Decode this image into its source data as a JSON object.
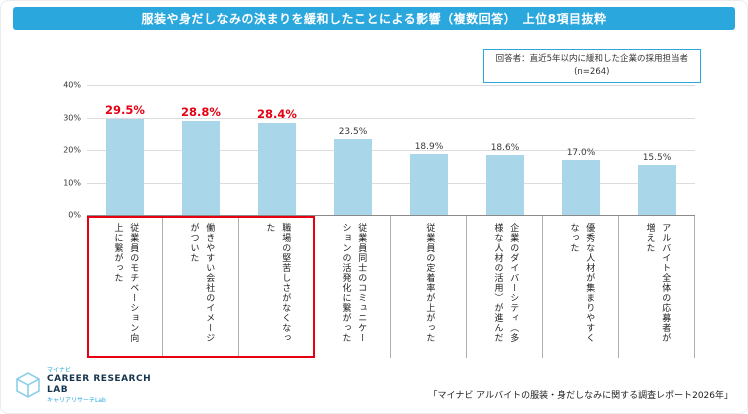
{
  "header": {
    "title": "服装や身だしなみの決まりを緩和したことによる影響（複数回答）　上位8項目抜粋"
  },
  "note": {
    "line1": "回答者：直近5年以内に緩和した企業の採用担当者",
    "line2": "(n=264)"
  },
  "chart_data": {
    "type": "bar",
    "title": "服装や身だしなみの決まりを緩和したことによる影響（複数回答）　上位8項目抜粋",
    "categories": [
      "従業員のモチベーション向上に繋がった",
      "働きやすい会社のイメージがついた",
      "職場の堅苦しさがなくなった",
      "従業員同士のコミュニケーションの活発化に繋がった",
      "従業員の定着率が上がった",
      "企業のダイバーシティ（多様な人材の活用）が進んだ",
      "優秀な人材が集まりやすくなった",
      "アルバイト全体の応募者が増えた"
    ],
    "values": [
      29.5,
      28.8,
      28.4,
      23.5,
      18.9,
      18.6,
      17.0,
      15.5
    ],
    "highlight_count": 3,
    "ylim": [
      0,
      40
    ],
    "yticks": [
      "40%",
      "30%",
      "20%",
      "10%",
      "0%"
    ],
    "grid": true,
    "colors": {
      "bar": "#a9d6e8",
      "highlight": "#e60012",
      "header_bg": "#2aa7dd"
    }
  },
  "footer": {
    "logo": {
      "brand_small": "マイナビ",
      "line1": "CAREER RESEARCH",
      "line2": "LAB",
      "subtitle": "キャリアリサーチLab"
    },
    "source": "「マイナビ アルバイトの服装・身だしなみに関する調査レポート2026年」"
  }
}
